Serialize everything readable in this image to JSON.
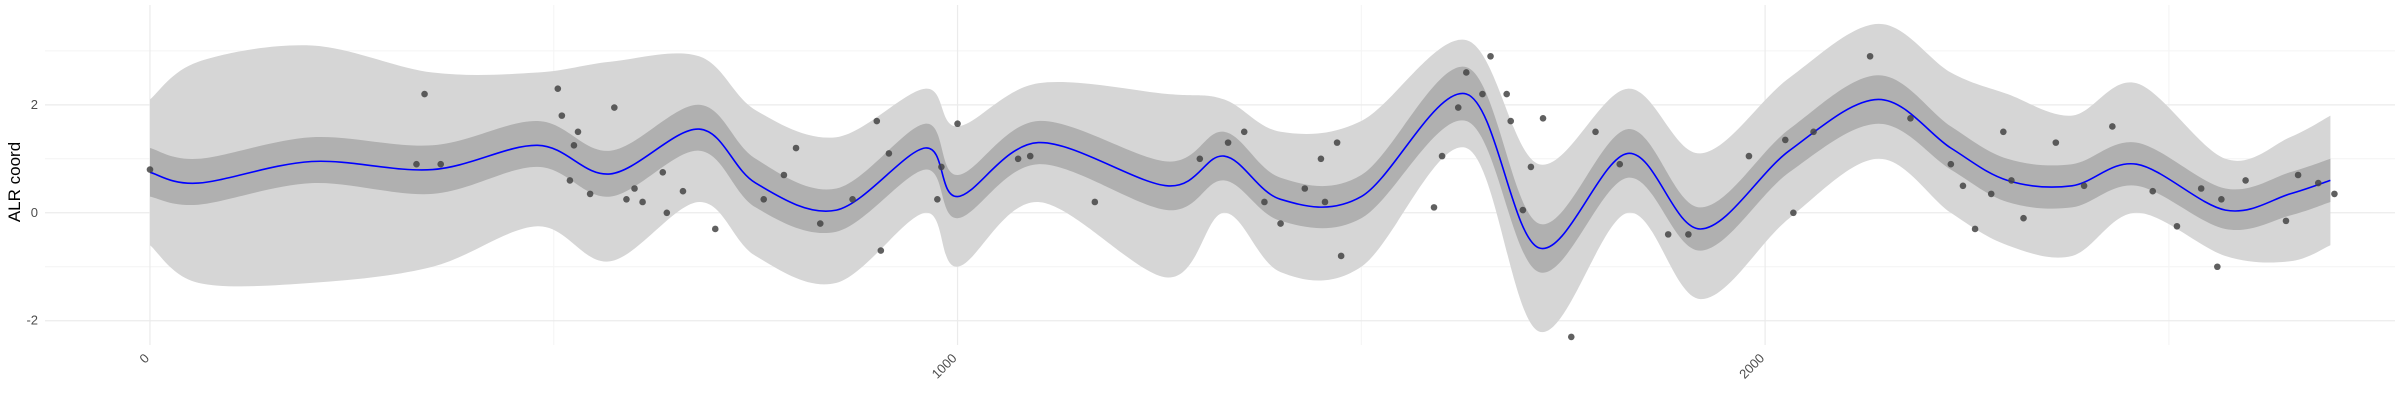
{
  "chart_data": {
    "type": "line",
    "title": "",
    "xlabel": "",
    "ylabel": "ALR coord",
    "xlim": [
      -130,
      2780
    ],
    "ylim": [
      -2.45,
      3.85
    ],
    "x_ticks": [
      0,
      1000,
      2000
    ],
    "x_tick_labels": [
      "0",
      "1000",
      "2000"
    ],
    "y_ticks": [
      -2,
      0,
      2
    ],
    "y_tick_labels": [
      "-2",
      "0",
      "2"
    ],
    "grid": true,
    "legend": "none",
    "colors": {
      "mean_line": "#0000ff",
      "inner_band": "#b0b0b0",
      "outer_band": "#d6d6d6",
      "points": "#444444",
      "grid_major": "#ebebeb",
      "grid_minor": "#f4f4f4"
    },
    "series": [
      {
        "kind": "line",
        "x": [
          0,
          60,
          200,
          350,
          480,
          570,
          680,
          750,
          850,
          960,
          1000,
          1100,
          1260,
          1330,
          1400,
          1500,
          1630,
          1720,
          1830,
          1920,
          2030,
          2140,
          2230,
          2300,
          2380,
          2460,
          2570,
          2650,
          2700
        ],
        "y": [
          0.75,
          0.55,
          0.95,
          0.8,
          1.25,
          0.72,
          1.55,
          0.55,
          0.05,
          1.2,
          0.3,
          1.3,
          0.5,
          1.05,
          0.25,
          0.3,
          2.2,
          -0.65,
          1.1,
          -0.3,
          1.15,
          2.1,
          1.2,
          0.6,
          0.5,
          0.9,
          0.05,
          0.35,
          0.6
        ]
      },
      {
        "kind": "band-inner",
        "x": [
          0,
          60,
          200,
          350,
          480,
          570,
          680,
          750,
          850,
          960,
          1000,
          1100,
          1260,
          1330,
          1400,
          1500,
          1630,
          1720,
          1830,
          1920,
          2030,
          2140,
          2230,
          2300,
          2380,
          2460,
          2570,
          2650,
          2700
        ],
        "lower": [
          0.3,
          0.15,
          0.55,
          0.35,
          0.85,
          0.3,
          1.15,
          0.1,
          -0.35,
          0.8,
          -0.1,
          0.9,
          0.05,
          0.6,
          -0.15,
          -0.1,
          1.7,
          -1.1,
          0.65,
          -0.7,
          0.75,
          1.65,
          0.8,
          0.2,
          0.1,
          0.5,
          -0.3,
          -0.05,
          0.2
        ],
        "upper": [
          1.2,
          1.0,
          1.4,
          1.25,
          1.7,
          1.15,
          2.0,
          1.0,
          0.45,
          1.65,
          0.7,
          1.7,
          0.95,
          1.5,
          0.65,
          0.7,
          2.7,
          -0.2,
          1.55,
          0.1,
          1.55,
          2.55,
          1.6,
          1.0,
          0.9,
          1.3,
          0.45,
          0.75,
          1.0
        ]
      },
      {
        "kind": "band-outer",
        "x": [
          0,
          60,
          200,
          350,
          480,
          570,
          680,
          750,
          850,
          960,
          1000,
          1100,
          1260,
          1330,
          1400,
          1500,
          1630,
          1720,
          1830,
          1920,
          2030,
          2140,
          2230,
          2300,
          2380,
          2460,
          2570,
          2650,
          2700
        ],
        "lower": [
          -0.6,
          -1.3,
          -1.3,
          -1.0,
          -0.25,
          -0.9,
          0.2,
          -0.8,
          -1.3,
          0.0,
          -1.0,
          0.2,
          -1.2,
          0.0,
          -1.1,
          -1.0,
          1.2,
          -2.2,
          0.0,
          -1.6,
          -0.1,
          1.0,
          0.0,
          -0.6,
          -0.8,
          0.0,
          -0.8,
          -0.9,
          -0.6
        ],
        "upper": [
          2.1,
          2.8,
          3.1,
          2.6,
          2.6,
          2.8,
          2.9,
          1.9,
          1.4,
          2.3,
          1.6,
          2.4,
          2.2,
          2.1,
          1.5,
          1.7,
          3.2,
          0.9,
          2.3,
          1.1,
          2.5,
          3.5,
          2.6,
          2.2,
          1.8,
          2.4,
          1.0,
          1.4,
          1.8
        ]
      },
      {
        "kind": "points",
        "x": [
          0,
          330,
          340,
          360,
          505,
          510,
          520,
          525,
          530,
          545,
          575,
          590,
          600,
          610,
          635,
          640,
          660,
          700,
          760,
          785,
          800,
          830,
          870,
          900,
          905,
          915,
          975,
          980,
          1000,
          1075,
          1090,
          1170,
          1300,
          1335,
          1355,
          1380,
          1400,
          1430,
          1450,
          1455,
          1470,
          1475,
          1590,
          1600,
          1620,
          1630,
          1650,
          1660,
          1680,
          1685,
          1700,
          1710,
          1725,
          1760,
          1790,
          1820,
          1880,
          1905,
          1980,
          2025,
          2035,
          2060,
          2130,
          2180,
          2230,
          2245,
          2260,
          2280,
          2295,
          2305,
          2320,
          2360,
          2395,
          2430,
          2480,
          2510,
          2540,
          2560,
          2565,
          2595,
          2645,
          2660,
          2685,
          2705
        ],
        "y": [
          0.8,
          0.9,
          2.2,
          0.9,
          2.3,
          1.8,
          0.6,
          1.25,
          1.5,
          0.35,
          1.95,
          0.25,
          0.45,
          0.2,
          0.75,
          0.0,
          0.4,
          -0.3,
          0.25,
          0.7,
          1.2,
          -0.2,
          0.25,
          1.7,
          -0.7,
          1.1,
          0.25,
          0.85,
          1.65,
          1.0,
          1.05,
          0.2,
          1.0,
          1.3,
          1.5,
          0.2,
          -0.2,
          0.45,
          1.0,
          0.2,
          1.3,
          -0.8,
          0.1,
          1.05,
          1.95,
          2.6,
          2.2,
          2.9,
          2.2,
          1.7,
          0.05,
          0.85,
          1.75,
          -2.3,
          1.5,
          0.9,
          -0.4,
          -0.4,
          1.05,
          1.35,
          0.0,
          1.5,
          2.9,
          1.75,
          0.9,
          0.5,
          -0.3,
          0.35,
          1.5,
          0.6,
          -0.1,
          1.3,
          0.5,
          1.6,
          0.4,
          -0.25,
          0.45,
          -1.0,
          0.25,
          0.6,
          -0.15,
          0.7,
          0.55,
          0.35
        ]
      }
    ]
  }
}
